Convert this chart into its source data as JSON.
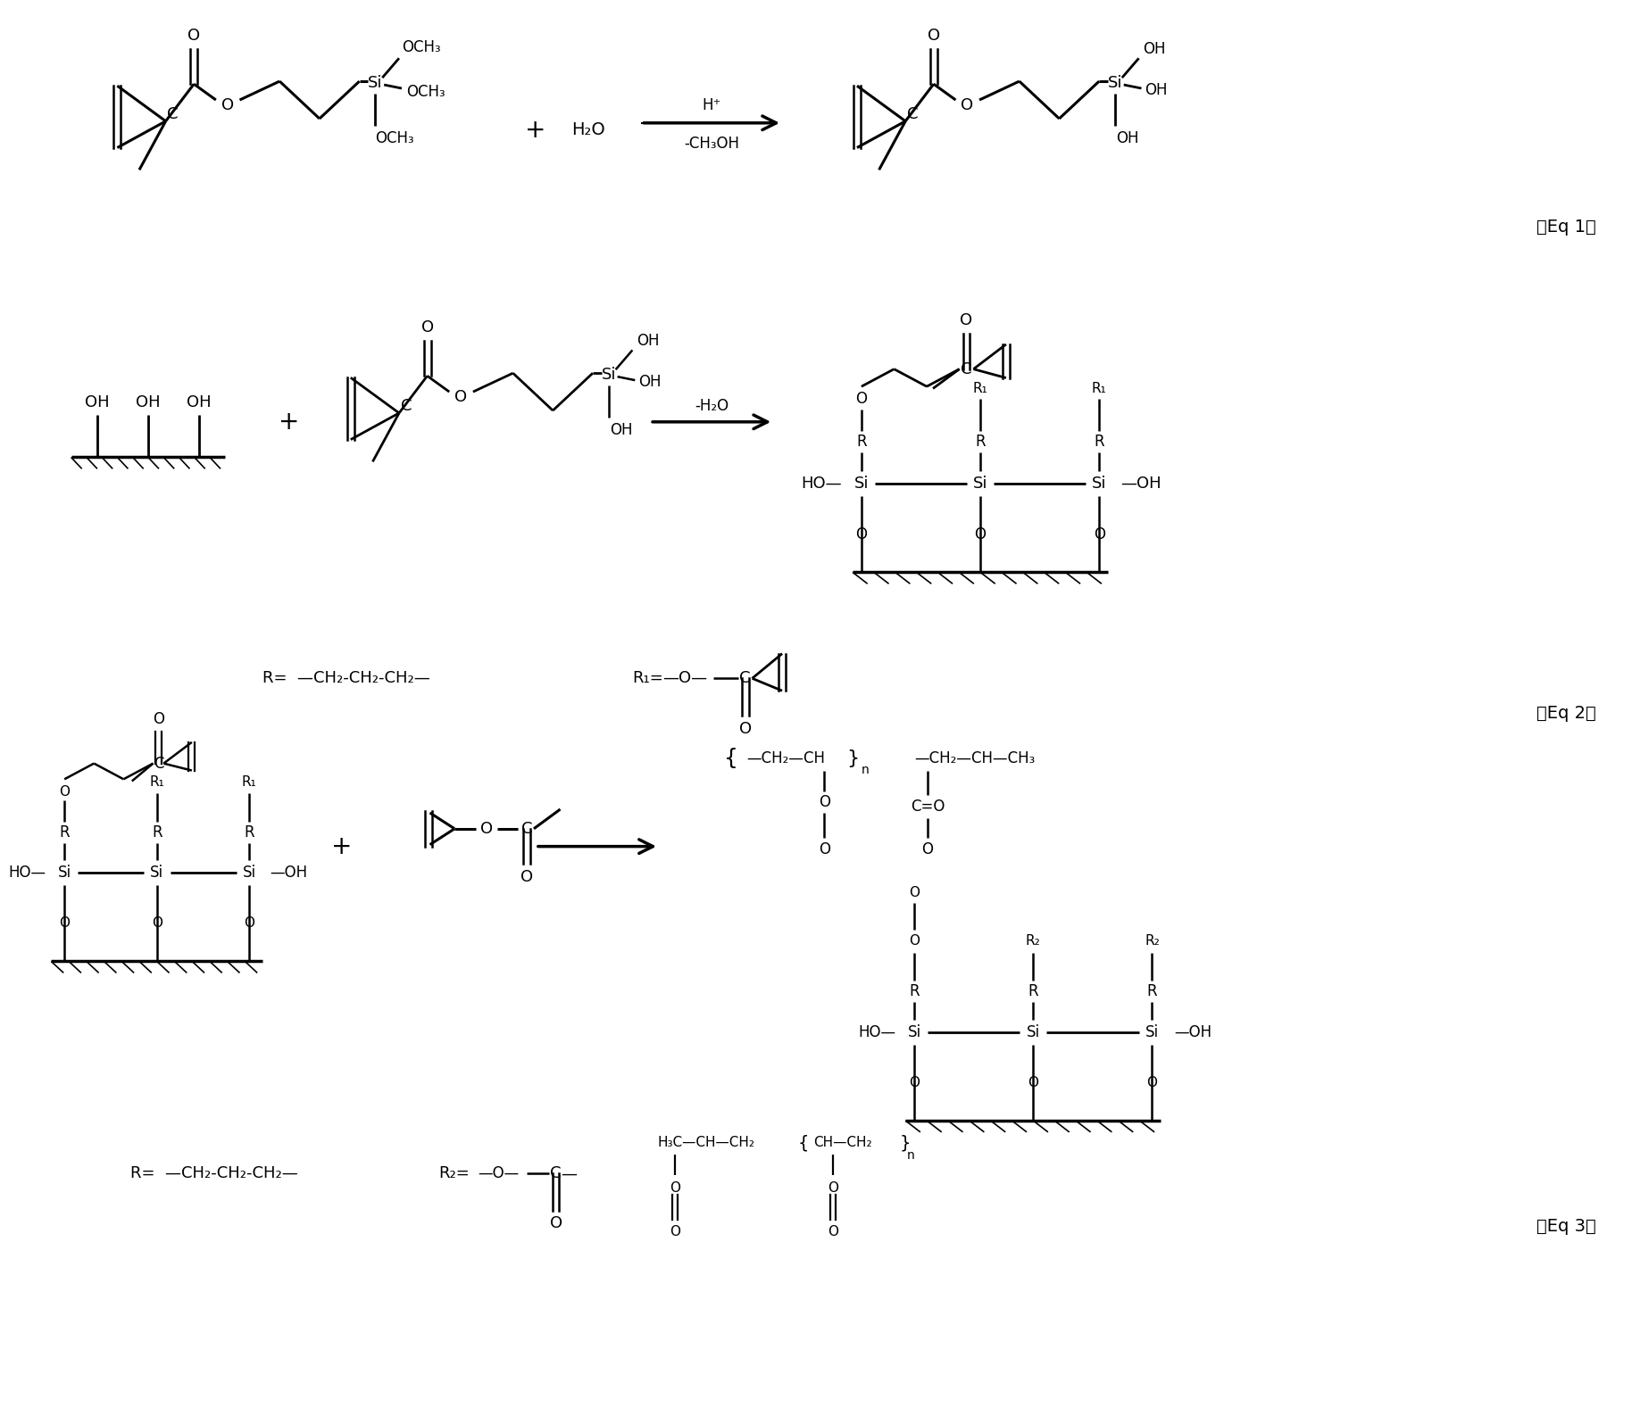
{
  "bg": "#ffffff",
  "lc": "#000000",
  "eq1_label": "（Eq 1）",
  "eq2_label": "（Eq 2）",
  "eq3_label": "（Eq 3）"
}
